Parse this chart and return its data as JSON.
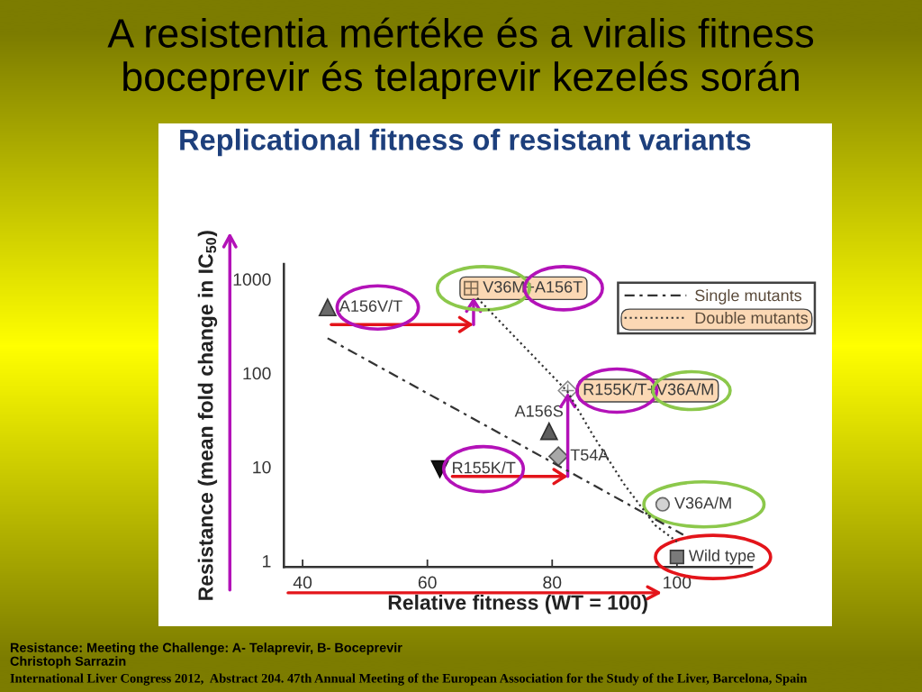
{
  "chart_data": {
    "type": "scatter",
    "title": "A resistentia mértéke és a viralis fitness\nboceprevir és telaprevir kezelés során",
    "subtitle": "Replicational fitness of resistant variants",
    "xlabel": "Relative fitness (WT = 100)",
    "ylabel": "Resistance (mean fold change in IC$_{50}$)",
    "xlim": [
      37,
      112
    ],
    "xticks": [
      40,
      60,
      80,
      100
    ],
    "ylim": [
      0.86,
      1450
    ],
    "yticks": [
      1,
      10,
      100,
      1000
    ],
    "log": "y",
    "grid": false,
    "legend": "top right",
    "series": [
      {
        "color": "#6a6a6a",
        "marker": "triangle",
        "x": [
          44
        ],
        "values": [
          500
        ]
      },
      {
        "color": "#f6cfa6",
        "marker": "square",
        "x": [
          67
        ],
        "values": [
          800
        ]
      },
      {
        "color": "#ffffff",
        "marker": "diamond",
        "x": [
          82.5
        ],
        "values": [
          65
        ]
      },
      {
        "color": "#5e5e5e",
        "marker": "triangle",
        "x": [
          79.5
        ],
        "values": [
          24
        ]
      },
      {
        "color": "#a8a8a8",
        "marker": "diamond",
        "x": [
          81
        ],
        "values": [
          13
        ]
      },
      {
        "color": "#111111",
        "marker": "triangle-down",
        "x": [
          62
        ],
        "values": [
          9.5
        ]
      },
      {
        "color": "#d2d2d2",
        "marker": "circle",
        "x": [
          97.7
        ],
        "values": [
          4
        ]
      },
      {
        "color": "#7a7a7a",
        "marker": "square",
        "x": [
          100
        ],
        "values": [
          1.1
        ]
      },
      {
        "name": "Single mutants",
        "type": "line",
        "color": "#333333",
        "line_style": "dashdot",
        "marker": "none",
        "x": [
          44,
          101
        ],
        "values": [
          235,
          1.9
        ]
      },
      {
        "name": "Double mutants",
        "type": "line",
        "color": "#333333",
        "line_style": "dotted",
        "marker": "none",
        "x": [
          68,
          82.5,
          86.5,
          91.5,
          96.5,
          100
        ],
        "values": [
          630,
          63,
          22,
          6.6,
          2.4,
          1.6
        ]
      }
    ],
    "annotations": [
      {
        "text": "A156V/T",
        "x": 44,
        "y": 500
      },
      {
        "text": "V36M+A156T",
        "x": 67,
        "y": 800
      },
      {
        "text": "R155K/T+V36A/M",
        "x": 82.5,
        "y": 65
      },
      {
        "text": "A156S",
        "x": 79.5,
        "y": 24
      },
      {
        "text": "T54A",
        "x": 81,
        "y": 13
      },
      {
        "text": "R155K/T",
        "x": 62,
        "y": 9.5
      },
      {
        "text": "V36A/M",
        "x": 97.7,
        "y": 4
      },
      {
        "text": "Wild type",
        "x": 100,
        "y": 1.1
      },
      "Resistance: Meeting the Challenge: A- Telaprevir, B- Boceprevir",
      "Christoph Sarrazin",
      "International Liver Congress 2012,  Abstract 204. 47th Annual Meeting of the European Association for the Study of the Liver, Barcelona, Spain"
    ]
  }
}
